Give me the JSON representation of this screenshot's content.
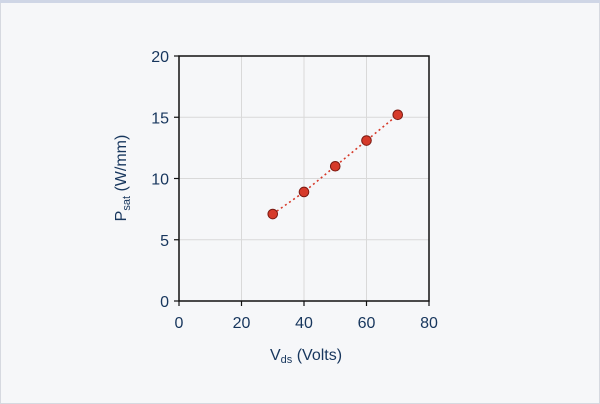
{
  "chart_data": {
    "type": "scatter",
    "xlabel": {
      "main": "V",
      "sub": "ds",
      "rest": " (Volts)"
    },
    "ylabel": {
      "main": "P",
      "sub": "sat",
      "rest": " (W/mm)"
    },
    "xlim": [
      0,
      80
    ],
    "ylim": [
      0,
      20
    ],
    "xticks": [
      0,
      20,
      40,
      60,
      80
    ],
    "yticks": [
      0,
      5,
      10,
      15,
      20
    ],
    "grid": true,
    "series": [
      {
        "x": [
          30,
          40,
          50,
          60,
          70
        ],
        "y": [
          7.1,
          8.9,
          11.0,
          13.1,
          15.2
        ],
        "marker_color": "#d63a2a",
        "marker_edge": "#7a1a12",
        "line_style": "dotted",
        "line_color": "#d63a2a"
      }
    ]
  }
}
